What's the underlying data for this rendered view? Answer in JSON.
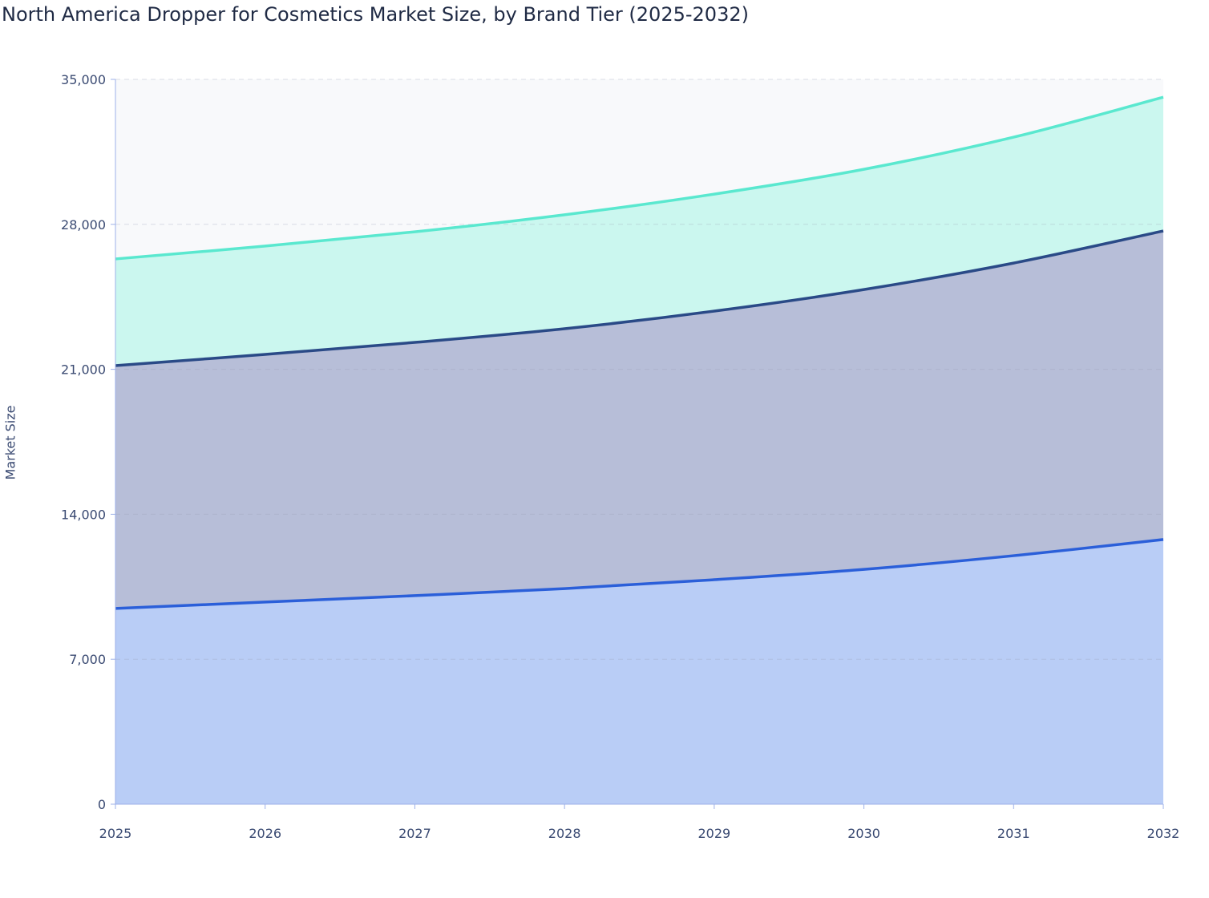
{
  "chart_data": {
    "type": "area",
    "stacked": true,
    "title": "North America Dropper for Cosmetics Market Size, by Brand Tier (2025-2032)",
    "xlabel": "",
    "ylabel": "Market Size",
    "x": [
      2025,
      2026,
      2027,
      2028,
      2029,
      2030,
      2031,
      2032
    ],
    "x_ticks": [
      "2025",
      "2026",
      "2027",
      "2028",
      "2029",
      "2030",
      "2031",
      "2032"
    ],
    "ylim": [
      0,
      35000
    ],
    "y_ticks": [
      "0",
      "7,000",
      "14,000",
      "21,000",
      "28,000",
      "35,000"
    ],
    "y_tick_values": [
      0,
      7000,
      14000,
      21000,
      28000,
      35000
    ],
    "grid": true,
    "legend": "none",
    "series": [
      {
        "values": [
          9450,
          9760,
          10070,
          10410,
          10840,
          11340,
          12000,
          12780
        ],
        "line_color": "#2b5fd9",
        "fill_color": "#b9cdf6"
      },
      {
        "values": [
          11730,
          11960,
          12230,
          12550,
          12970,
          13510,
          14130,
          14900
        ],
        "line_color": "#2a4a87",
        "fill_color": "#b7bed8"
      },
      {
        "values": [
          5150,
          5230,
          5340,
          5500,
          5650,
          5810,
          6080,
          6460
        ],
        "line_color": "#5ae8cf",
        "fill_color": "#cbf7ef"
      }
    ],
    "plot_background": "#f8f9fb"
  }
}
